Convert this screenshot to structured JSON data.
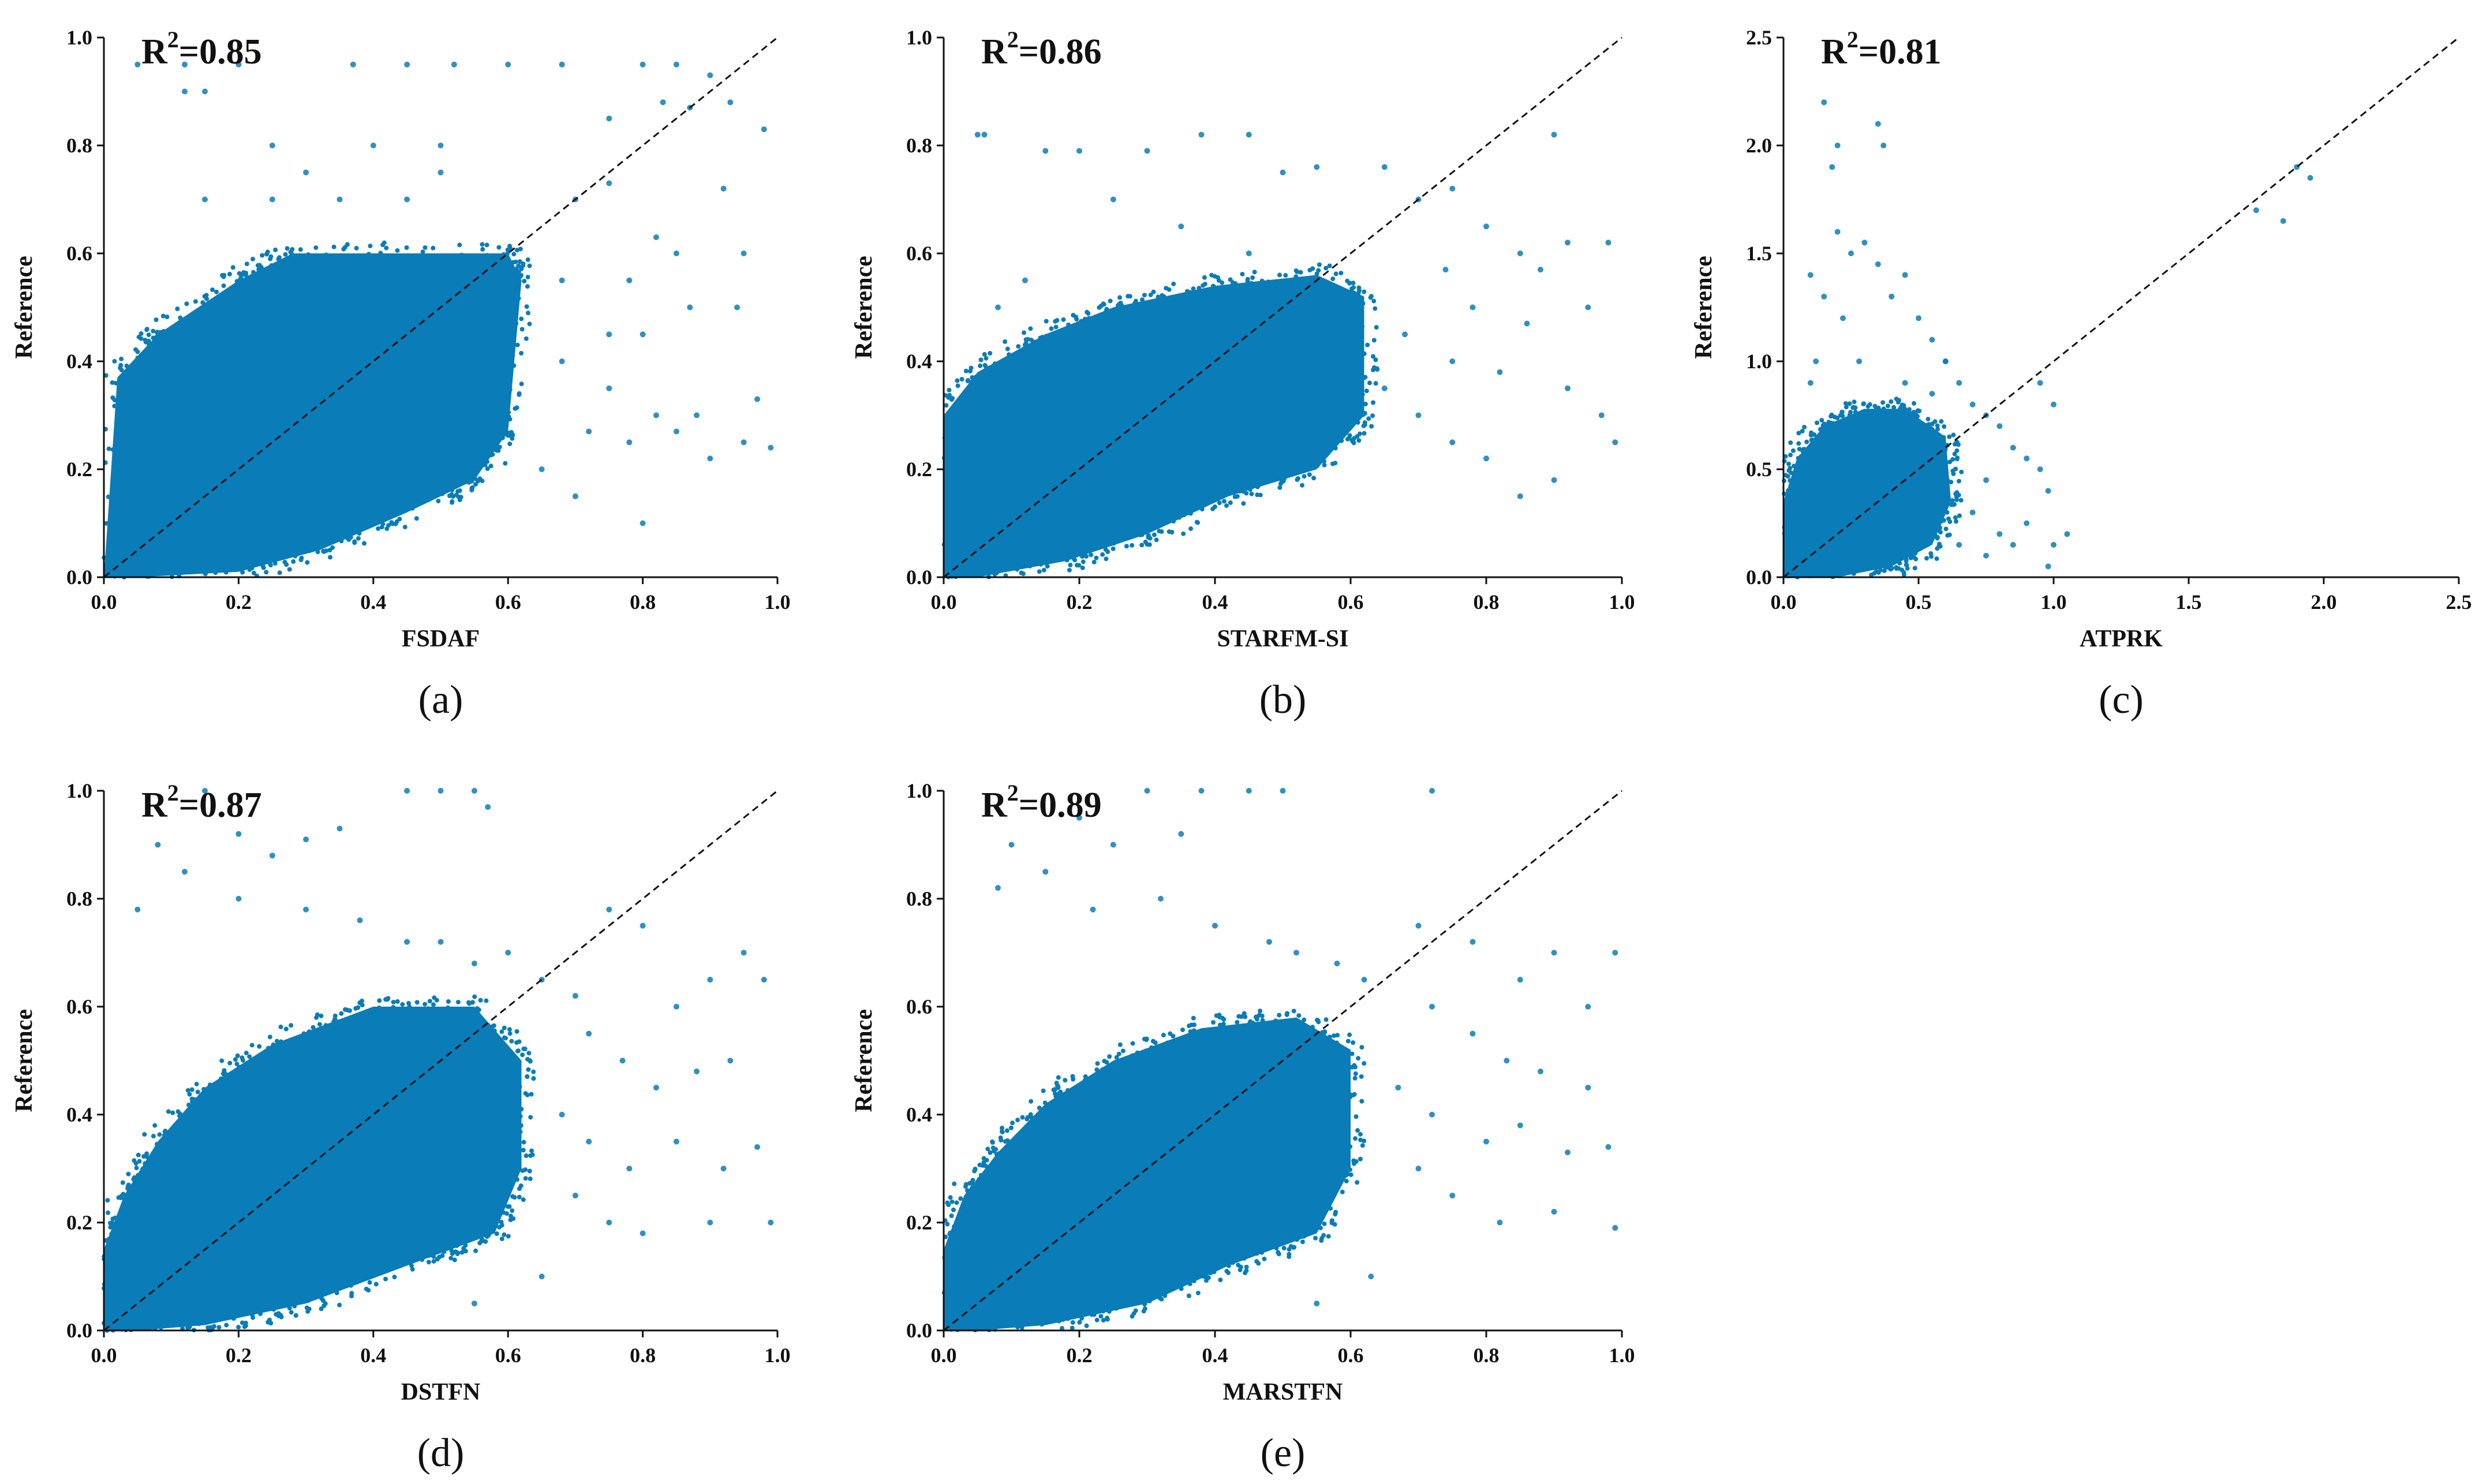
{
  "colors": {
    "points": "#0a7cb8",
    "cloud": "#0a7cb8",
    "axis": "#111111",
    "diagonal": "#111111"
  },
  "chart_data": [
    {
      "panel": "a",
      "caption": "(a)",
      "type": "scatter",
      "xlabel": "FSDAF",
      "ylabel": "Reference",
      "annotation": {
        "base": "R",
        "sup": "2",
        "rest": "=0.85"
      },
      "xlim": [
        0,
        1.0
      ],
      "ylim": [
        0,
        1.0
      ],
      "xticks": [
        "0.0",
        "0.2",
        "0.4",
        "0.6",
        "0.8",
        "1.0"
      ],
      "yticks": [
        "0.0",
        "0.2",
        "0.4",
        "0.6",
        "0.8",
        "1.0"
      ],
      "reference_line": "1:1 dashed",
      "dense_cloud": [
        [
          0,
          0
        ],
        [
          0.02,
          0.37
        ],
        [
          0.08,
          0.45
        ],
        [
          0.2,
          0.55
        ],
        [
          0.28,
          0.6
        ],
        [
          0.6,
          0.6
        ],
        [
          0.62,
          0.55
        ],
        [
          0.6,
          0.27
        ],
        [
          0.55,
          0.18
        ],
        [
          0.45,
          0.12
        ],
        [
          0.32,
          0.05
        ],
        [
          0.2,
          0.01
        ],
        [
          0.05,
          0
        ]
      ],
      "scatter_points": [
        [
          0.05,
          0.95
        ],
        [
          0.12,
          0.95
        ],
        [
          0.2,
          0.95
        ],
        [
          0.37,
          0.95
        ],
        [
          0.45,
          0.95
        ],
        [
          0.52,
          0.95
        ],
        [
          0.6,
          0.95
        ],
        [
          0.68,
          0.95
        ],
        [
          0.8,
          0.95
        ],
        [
          0.85,
          0.95
        ],
        [
          0.12,
          0.9
        ],
        [
          0.15,
          0.9
        ],
        [
          0.9,
          0.93
        ],
        [
          0.25,
          0.8
        ],
        [
          0.4,
          0.8
        ],
        [
          0.5,
          0.8
        ],
        [
          0.75,
          0.85
        ],
        [
          0.83,
          0.88
        ],
        [
          0.87,
          0.87
        ],
        [
          0.93,
          0.88
        ],
        [
          0.98,
          0.83
        ],
        [
          0.3,
          0.75
        ],
        [
          0.5,
          0.75
        ],
        [
          0.75,
          0.73
        ],
        [
          0.92,
          0.72
        ],
        [
          0.15,
          0.7
        ],
        [
          0.25,
          0.7
        ],
        [
          0.35,
          0.7
        ],
        [
          0.45,
          0.7
        ],
        [
          0.7,
          0.7
        ],
        [
          0.82,
          0.63
        ],
        [
          0.85,
          0.6
        ],
        [
          0.95,
          0.6
        ],
        [
          0.68,
          0.55
        ],
        [
          0.78,
          0.55
        ],
        [
          0.87,
          0.5
        ],
        [
          0.94,
          0.5
        ],
        [
          0.75,
          0.45
        ],
        [
          0.8,
          0.45
        ],
        [
          0.68,
          0.4
        ],
        [
          0.75,
          0.35
        ],
        [
          0.82,
          0.3
        ],
        [
          0.88,
          0.3
        ],
        [
          0.97,
          0.33
        ],
        [
          0.72,
          0.27
        ],
        [
          0.78,
          0.25
        ],
        [
          0.85,
          0.27
        ],
        [
          0.95,
          0.25
        ],
        [
          0.65,
          0.2
        ],
        [
          0.7,
          0.15
        ],
        [
          0.8,
          0.1
        ],
        [
          0.9,
          0.22
        ],
        [
          0.99,
          0.24
        ]
      ]
    },
    {
      "panel": "b",
      "caption": "(b)",
      "type": "scatter",
      "xlabel": "STARFM-SI",
      "ylabel": "Reference",
      "annotation": {
        "base": "R",
        "sup": "2",
        "rest": "=0.86"
      },
      "xlim": [
        0,
        1.0
      ],
      "ylim": [
        0,
        1.0
      ],
      "xticks": [
        "0.0",
        "0.2",
        "0.4",
        "0.6",
        "0.8",
        "1.0"
      ],
      "yticks": [
        "0.0",
        "0.2",
        "0.4",
        "0.6",
        "0.8",
        "1.0"
      ],
      "reference_line": "1:1 dashed",
      "dense_cloud": [
        [
          0,
          0
        ],
        [
          0.0,
          0.3
        ],
        [
          0.05,
          0.38
        ],
        [
          0.15,
          0.45
        ],
        [
          0.25,
          0.5
        ],
        [
          0.4,
          0.54
        ],
        [
          0.55,
          0.56
        ],
        [
          0.62,
          0.52
        ],
        [
          0.62,
          0.3
        ],
        [
          0.55,
          0.2
        ],
        [
          0.42,
          0.15
        ],
        [
          0.3,
          0.08
        ],
        [
          0.18,
          0.03
        ],
        [
          0.05,
          0
        ]
      ],
      "scatter_points": [
        [
          0.05,
          0.82
        ],
        [
          0.06,
          0.82
        ],
        [
          0.15,
          0.79
        ],
        [
          0.2,
          0.79
        ],
        [
          0.3,
          0.79
        ],
        [
          0.38,
          0.82
        ],
        [
          0.45,
          0.82
        ],
        [
          0.5,
          0.75
        ],
        [
          0.55,
          0.76
        ],
        [
          0.65,
          0.76
        ],
        [
          0.7,
          0.7
        ],
        [
          0.75,
          0.72
        ],
        [
          0.9,
          0.82
        ],
        [
          0.92,
          0.62
        ],
        [
          0.98,
          0.62
        ],
        [
          0.8,
          0.65
        ],
        [
          0.85,
          0.6
        ],
        [
          0.88,
          0.57
        ],
        [
          0.74,
          0.57
        ],
        [
          0.78,
          0.5
        ],
        [
          0.86,
          0.47
        ],
        [
          0.95,
          0.5
        ],
        [
          0.68,
          0.45
        ],
        [
          0.75,
          0.4
        ],
        [
          0.82,
          0.38
        ],
        [
          0.92,
          0.35
        ],
        [
          0.97,
          0.3
        ],
        [
          0.7,
          0.3
        ],
        [
          0.75,
          0.25
        ],
        [
          0.8,
          0.22
        ],
        [
          0.85,
          0.15
        ],
        [
          0.9,
          0.18
        ],
        [
          0.99,
          0.25
        ],
        [
          0.65,
          0.35
        ],
        [
          0.25,
          0.7
        ],
        [
          0.35,
          0.65
        ],
        [
          0.45,
          0.6
        ],
        [
          0.12,
          0.55
        ],
        [
          0.08,
          0.5
        ]
      ]
    },
    {
      "panel": "c",
      "caption": "(c)",
      "type": "scatter",
      "xlabel": "ATPRK",
      "ylabel": "Reference",
      "annotation": {
        "base": "R",
        "sup": "2",
        "rest": "=0.81"
      },
      "xlim": [
        0,
        2.5
      ],
      "ylim": [
        0,
        2.5
      ],
      "xticks": [
        "0.0",
        "0.5",
        "1.0",
        "1.5",
        "2.0",
        "2.5"
      ],
      "yticks": [
        "0.0",
        "0.5",
        "1.0",
        "1.5",
        "2.0",
        "2.5"
      ],
      "reference_line": "1:1 dashed",
      "dense_cloud": [
        [
          0,
          0
        ],
        [
          0.0,
          0.35
        ],
        [
          0.05,
          0.55
        ],
        [
          0.15,
          0.7
        ],
        [
          0.3,
          0.78
        ],
        [
          0.45,
          0.78
        ],
        [
          0.6,
          0.65
        ],
        [
          0.62,
          0.35
        ],
        [
          0.55,
          0.15
        ],
        [
          0.4,
          0.05
        ],
        [
          0.2,
          0
        ],
        [
          0.05,
          0
        ]
      ],
      "scatter_points": [
        [
          0.15,
          2.2
        ],
        [
          0.2,
          2.0
        ],
        [
          0.18,
          1.9
        ],
        [
          0.35,
          2.1
        ],
        [
          0.37,
          2.0
        ],
        [
          0.2,
          1.6
        ],
        [
          0.25,
          1.5
        ],
        [
          0.3,
          1.55
        ],
        [
          0.35,
          1.45
        ],
        [
          0.4,
          1.3
        ],
        [
          0.45,
          1.4
        ],
        [
          0.5,
          1.2
        ],
        [
          0.55,
          1.1
        ],
        [
          0.6,
          1.0
        ],
        [
          0.1,
          1.4
        ],
        [
          0.15,
          1.3
        ],
        [
          0.12,
          1.0
        ],
        [
          0.1,
          0.9
        ],
        [
          0.22,
          1.2
        ],
        [
          0.28,
          1.0
        ],
        [
          0.45,
          0.9
        ],
        [
          0.55,
          0.85
        ],
        [
          0.65,
          0.9
        ],
        [
          0.7,
          0.8
        ],
        [
          0.75,
          0.75
        ],
        [
          0.8,
          0.7
        ],
        [
          0.85,
          0.6
        ],
        [
          0.9,
          0.55
        ],
        [
          0.95,
          0.5
        ],
        [
          0.98,
          0.4
        ],
        [
          0.75,
          0.45
        ],
        [
          0.7,
          0.3
        ],
        [
          0.8,
          0.2
        ],
        [
          0.9,
          0.25
        ],
        [
          0.85,
          0.15
        ],
        [
          0.75,
          0.1
        ],
        [
          1.0,
          0.8
        ],
        [
          0.95,
          0.9
        ],
        [
          1.05,
          0.2
        ],
        [
          0.98,
          0.05
        ],
        [
          1.0,
          0.15
        ],
        [
          0.65,
          0.15
        ],
        [
          0.6,
          1.0
        ],
        [
          1.75,
          1.7
        ],
        [
          1.85,
          1.65
        ],
        [
          1.9,
          1.9
        ],
        [
          1.95,
          1.85
        ]
      ]
    },
    {
      "panel": "d",
      "caption": "(d)",
      "type": "scatter",
      "xlabel": "DSTFN",
      "ylabel": "Reference",
      "annotation": {
        "base": "R",
        "sup": "2",
        "rest": "=0.87"
      },
      "xlim": [
        0,
        1.0
      ],
      "ylim": [
        0,
        1.0
      ],
      "xticks": [
        "0.0",
        "0.2",
        "0.4",
        "0.6",
        "0.8",
        "1.0"
      ],
      "yticks": [
        "0.0",
        "0.2",
        "0.4",
        "0.6",
        "0.8",
        "1.0"
      ],
      "reference_line": "1:1 dashed",
      "dense_cloud": [
        [
          0,
          0
        ],
        [
          0.0,
          0.15
        ],
        [
          0.03,
          0.25
        ],
        [
          0.08,
          0.35
        ],
        [
          0.15,
          0.45
        ],
        [
          0.25,
          0.53
        ],
        [
          0.4,
          0.6
        ],
        [
          0.55,
          0.6
        ],
        [
          0.62,
          0.5
        ],
        [
          0.62,
          0.3
        ],
        [
          0.58,
          0.18
        ],
        [
          0.45,
          0.12
        ],
        [
          0.3,
          0.05
        ],
        [
          0.15,
          0.01
        ],
        [
          0.05,
          0
        ]
      ],
      "scatter_points": [
        [
          0.15,
          1.0
        ],
        [
          0.45,
          1.0
        ],
        [
          0.5,
          1.0
        ],
        [
          0.55,
          1.0
        ],
        [
          0.57,
          0.97
        ],
        [
          0.2,
          0.92
        ],
        [
          0.25,
          0.88
        ],
        [
          0.3,
          0.91
        ],
        [
          0.35,
          0.93
        ],
        [
          0.08,
          0.9
        ],
        [
          0.12,
          0.85
        ],
        [
          0.05,
          0.78
        ],
        [
          0.2,
          0.8
        ],
        [
          0.3,
          0.78
        ],
        [
          0.38,
          0.76
        ],
        [
          0.45,
          0.72
        ],
        [
          0.5,
          0.72
        ],
        [
          0.55,
          0.68
        ],
        [
          0.6,
          0.7
        ],
        [
          0.65,
          0.65
        ],
        [
          0.7,
          0.62
        ],
        [
          0.75,
          0.78
        ],
        [
          0.8,
          0.75
        ],
        [
          0.85,
          0.6
        ],
        [
          0.9,
          0.65
        ],
        [
          0.95,
          0.7
        ],
        [
          0.98,
          0.65
        ],
        [
          0.72,
          0.55
        ],
        [
          0.77,
          0.5
        ],
        [
          0.82,
          0.45
        ],
        [
          0.88,
          0.48
        ],
        [
          0.93,
          0.5
        ],
        [
          0.68,
          0.4
        ],
        [
          0.72,
          0.35
        ],
        [
          0.78,
          0.3
        ],
        [
          0.85,
          0.35
        ],
        [
          0.92,
          0.3
        ],
        [
          0.97,
          0.34
        ],
        [
          0.7,
          0.25
        ],
        [
          0.75,
          0.2
        ],
        [
          0.8,
          0.18
        ],
        [
          0.9,
          0.2
        ],
        [
          0.99,
          0.2
        ],
        [
          0.65,
          0.1
        ],
        [
          0.55,
          0.05
        ]
      ]
    },
    {
      "panel": "e",
      "caption": "(e)",
      "type": "scatter",
      "xlabel": "MARSTFN",
      "ylabel": "Reference",
      "annotation": {
        "base": "R",
        "sup": "2",
        "rest": "=0.89"
      },
      "xlim": [
        0,
        1.0
      ],
      "ylim": [
        0,
        1.0
      ],
      "xticks": [
        "0.0",
        "0.2",
        "0.4",
        "0.6",
        "0.8",
        "1.0"
      ],
      "yticks": [
        "0.0",
        "0.2",
        "0.4",
        "0.6",
        "0.8",
        "1.0"
      ],
      "reference_line": "1:1 dashed",
      "dense_cloud": [
        [
          0,
          0
        ],
        [
          0.0,
          0.15
        ],
        [
          0.03,
          0.25
        ],
        [
          0.08,
          0.33
        ],
        [
          0.15,
          0.42
        ],
        [
          0.25,
          0.5
        ],
        [
          0.38,
          0.56
        ],
        [
          0.52,
          0.58
        ],
        [
          0.6,
          0.52
        ],
        [
          0.6,
          0.3
        ],
        [
          0.55,
          0.18
        ],
        [
          0.42,
          0.12
        ],
        [
          0.3,
          0.05
        ],
        [
          0.15,
          0.01
        ],
        [
          0.05,
          0
        ]
      ],
      "scatter_points": [
        [
          0.3,
          1.0
        ],
        [
          0.38,
          1.0
        ],
        [
          0.45,
          1.0
        ],
        [
          0.5,
          1.0
        ],
        [
          0.72,
          1.0
        ],
        [
          0.2,
          0.95
        ],
        [
          0.25,
          0.9
        ],
        [
          0.35,
          0.92
        ],
        [
          0.1,
          0.9
        ],
        [
          0.08,
          0.82
        ],
        [
          0.15,
          0.85
        ],
        [
          0.22,
          0.78
        ],
        [
          0.32,
          0.8
        ],
        [
          0.4,
          0.75
        ],
        [
          0.48,
          0.72
        ],
        [
          0.52,
          0.7
        ],
        [
          0.58,
          0.68
        ],
        [
          0.62,
          0.65
        ],
        [
          0.7,
          0.75
        ],
        [
          0.78,
          0.72
        ],
        [
          0.85,
          0.65
        ],
        [
          0.9,
          0.7
        ],
        [
          0.95,
          0.6
        ],
        [
          0.99,
          0.7
        ],
        [
          0.72,
          0.6
        ],
        [
          0.78,
          0.55
        ],
        [
          0.83,
          0.5
        ],
        [
          0.88,
          0.48
        ],
        [
          0.95,
          0.45
        ],
        [
          0.67,
          0.45
        ],
        [
          0.72,
          0.4
        ],
        [
          0.8,
          0.35
        ],
        [
          0.85,
          0.38
        ],
        [
          0.92,
          0.33
        ],
        [
          0.98,
          0.34
        ],
        [
          0.7,
          0.3
        ],
        [
          0.75,
          0.25
        ],
        [
          0.82,
          0.2
        ],
        [
          0.9,
          0.22
        ],
        [
          0.99,
          0.19
        ],
        [
          0.63,
          0.1
        ],
        [
          0.55,
          0.05
        ]
      ]
    }
  ]
}
